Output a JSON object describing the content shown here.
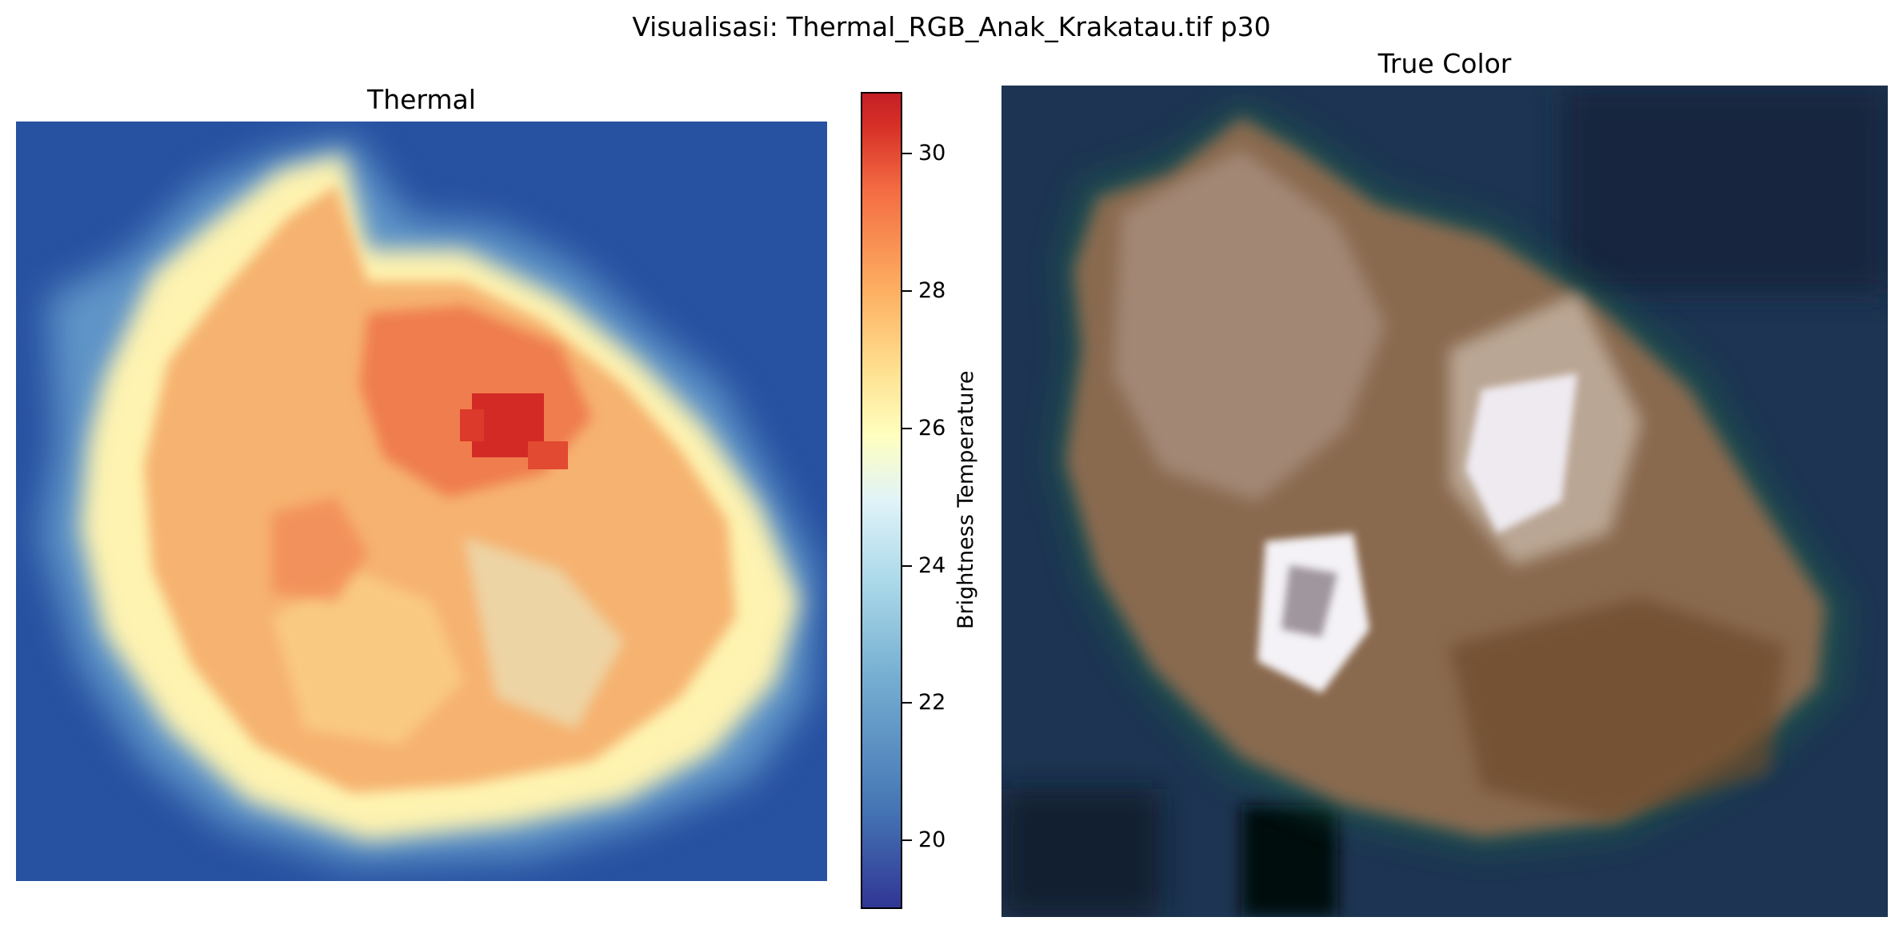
{
  "suptitle": "Visualisasi: Thermal_RGB_Anak_Krakatau.tif p30",
  "chart_data": [
    {
      "type": "heatmap",
      "title": "Thermal",
      "colormap": "RdYlBu_r",
      "colorbar": {
        "label": "Brightness Temperature",
        "range": [
          19.0,
          30.9
        ],
        "ticks": [
          20,
          22,
          24,
          26,
          28,
          30
        ],
        "colors": [
          "#313695",
          "#4575b4",
          "#74add1",
          "#abd9e9",
          "#e0f3f8",
          "#ffffbf",
          "#fee090",
          "#fdae61",
          "#f46d43",
          "#d73027"
        ]
      },
      "description_values": {
        "background_sea_temp": 20.5,
        "island_edge_temp": 26,
        "island_interior_temp": 28.5,
        "crater_peak_temp": 30.9
      },
      "axes_visible": false
    },
    {
      "type": "heatmap",
      "title": "True Color",
      "colormap": "rgb",
      "axes_visible": false,
      "colors": {
        "sea": "#1b3350",
        "island": "#8a6a4f",
        "bright_patch": "#f4f2f6",
        "shadow": "#0a0d12"
      }
    }
  ]
}
